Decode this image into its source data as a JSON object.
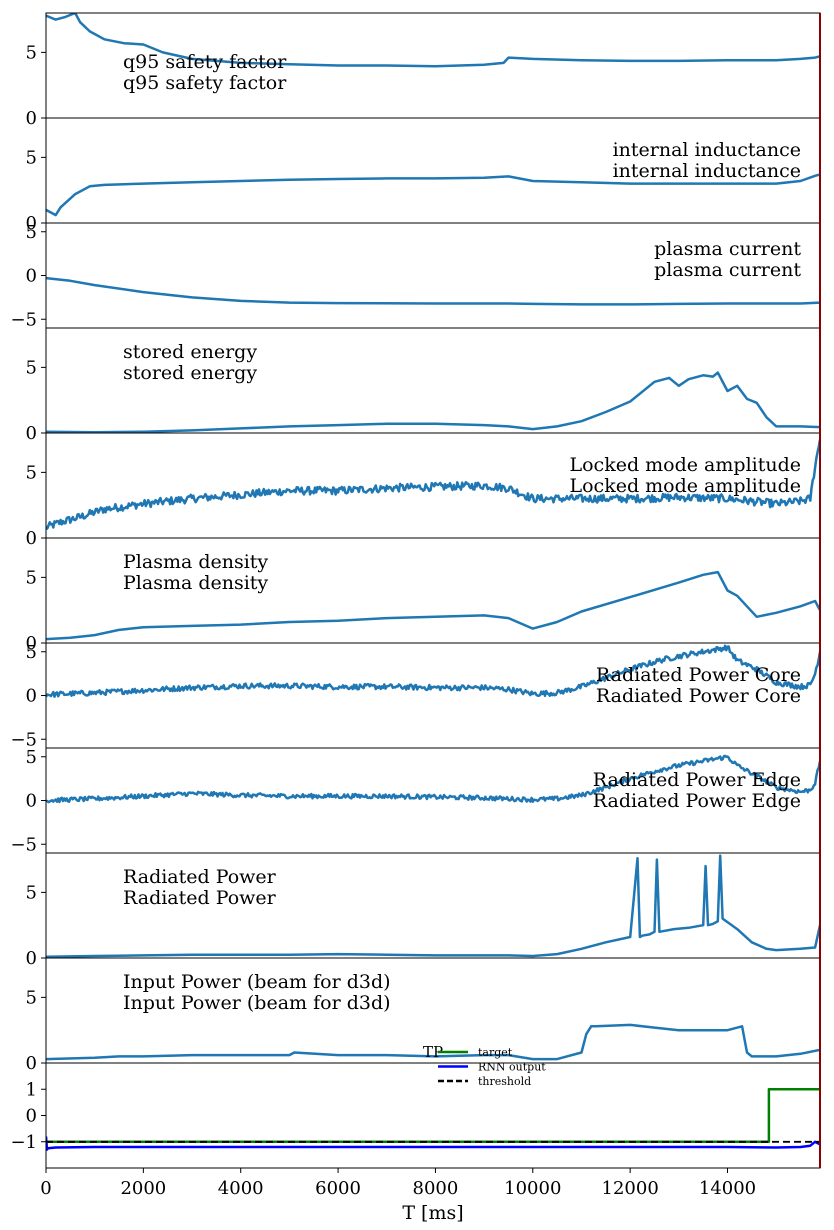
{
  "chart_data": [
    {
      "type": "line",
      "labels": [
        "q95 safety factor",
        "q95 safety factor"
      ],
      "label_anchor": "start",
      "color": "#1f77b4",
      "ylim": [
        0,
        8
      ],
      "yticks": [
        0,
        5
      ],
      "ytick_labels": [
        "0",
        "5"
      ],
      "series": [
        {
          "x": [
            0,
            200,
            400,
            600,
            700,
            900,
            1200,
            1600,
            2000,
            2400,
            3000,
            4000,
            5000,
            6000,
            7000,
            8000,
            9000,
            9400,
            9500,
            10000,
            11000,
            12000,
            13000,
            14000,
            15000,
            15500,
            15800,
            15900
          ],
          "y": [
            7.8,
            7.5,
            7.7,
            8.0,
            7.3,
            6.6,
            6.0,
            5.7,
            5.6,
            5.0,
            4.5,
            4.2,
            4.1,
            4.0,
            4.0,
            3.95,
            4.05,
            4.2,
            4.6,
            4.5,
            4.4,
            4.35,
            4.35,
            4.4,
            4.4,
            4.5,
            4.6,
            4.7
          ]
        }
      ]
    },
    {
      "type": "line",
      "labels": [
        "internal inductance",
        "internal inductance"
      ],
      "label_anchor": "end",
      "color": "#1f77b4",
      "ylim": [
        0,
        8
      ],
      "yticks": [
        0,
        5
      ],
      "ytick_labels": [
        "0",
        "5"
      ],
      "series": [
        {
          "x": [
            0,
            100,
            200,
            300,
            600,
            900,
            1200,
            2000,
            3000,
            4000,
            5000,
            6000,
            7000,
            8000,
            9000,
            9500,
            10000,
            11000,
            12000,
            13000,
            14000,
            15000,
            15500,
            15800,
            15900
          ],
          "y": [
            1.0,
            0.8,
            0.6,
            1.2,
            2.2,
            2.8,
            2.9,
            3.0,
            3.1,
            3.2,
            3.3,
            3.35,
            3.4,
            3.4,
            3.45,
            3.55,
            3.2,
            3.1,
            3.0,
            3.0,
            3.0,
            3.0,
            3.2,
            3.6,
            3.7
          ]
        }
      ]
    },
    {
      "type": "line",
      "labels": [
        "plasma current",
        "plasma current"
      ],
      "label_anchor": "end",
      "color": "#1f77b4",
      "ylim": [
        -6,
        6
      ],
      "yticks": [
        -5,
        0,
        5
      ],
      "ytick_labels": [
        "−5",
        "0",
        "5"
      ],
      "series": [
        {
          "x": [
            0,
            500,
            1000,
            2000,
            3000,
            4000,
            5000,
            6000,
            8000,
            9500,
            10000,
            11000,
            12000,
            13000,
            14000,
            15000,
            15500,
            15900
          ],
          "y": [
            -0.3,
            -0.6,
            -1.1,
            -1.9,
            -2.5,
            -2.9,
            -3.1,
            -3.15,
            -3.2,
            -3.2,
            -3.25,
            -3.3,
            -3.3,
            -3.25,
            -3.2,
            -3.2,
            -3.2,
            -3.1
          ]
        }
      ]
    },
    {
      "type": "line",
      "labels": [
        "stored energy",
        "stored energy"
      ],
      "label_anchor": "start",
      "color": "#1f77b4",
      "ylim": [
        0,
        8
      ],
      "yticks": [
        0,
        5
      ],
      "ytick_labels": [
        "0",
        "5"
      ],
      "series": [
        {
          "x": [
            0,
            1000,
            2000,
            3000,
            4000,
            5000,
            6000,
            7000,
            8000,
            9000,
            9500,
            10000,
            10500,
            11000,
            11500,
            12000,
            12300,
            12500,
            12800,
            13000,
            13200,
            13500,
            13700,
            13800,
            14000,
            14200,
            14400,
            14600,
            14800,
            15000,
            15500,
            15900
          ],
          "y": [
            0.1,
            0.05,
            0.1,
            0.2,
            0.35,
            0.5,
            0.6,
            0.7,
            0.7,
            0.6,
            0.5,
            0.3,
            0.5,
            0.9,
            1.6,
            2.4,
            3.3,
            3.9,
            4.2,
            3.6,
            4.1,
            4.4,
            4.3,
            4.6,
            3.2,
            3.6,
            2.6,
            2.3,
            1.2,
            0.5,
            0.5,
            0.45
          ]
        }
      ]
    },
    {
      "type": "line",
      "labels": [
        "Locked mode amplitude",
        "Locked mode amplitude"
      ],
      "label_anchor": "end",
      "color": "#1f77b4",
      "ylim": [
        0,
        8
      ],
      "yticks": [
        0,
        5
      ],
      "ytick_labels": [
        "0",
        "5"
      ],
      "noise": 0.3,
      "series": [
        {
          "x": [
            0,
            300,
            700,
            1200,
            2000,
            3000,
            4000,
            5000,
            6000,
            7000,
            8000,
            9000,
            9500,
            10000,
            11000,
            12000,
            13000,
            14000,
            14500,
            15000,
            15500,
            15700,
            15800,
            15900
          ],
          "y": [
            0.8,
            1.2,
            1.6,
            2.2,
            2.6,
            3.0,
            3.3,
            3.6,
            3.6,
            3.8,
            3.9,
            4.0,
            3.8,
            3.0,
            3.0,
            3.0,
            3.1,
            3.0,
            2.8,
            2.6,
            2.8,
            3.0,
            5.5,
            7.5
          ]
        }
      ]
    },
    {
      "type": "line",
      "labels": [
        "Plasma density",
        "Plasma density"
      ],
      "label_anchor": "start",
      "color": "#1f77b4",
      "ylim": [
        0,
        8
      ],
      "yticks": [
        0,
        5
      ],
      "ytick_labels": [
        "0",
        "5"
      ],
      "series": [
        {
          "x": [
            0,
            500,
            1000,
            1500,
            2000,
            3000,
            4000,
            5000,
            6000,
            7000,
            8000,
            9000,
            9500,
            10000,
            10500,
            11000,
            12000,
            13000,
            13500,
            13800,
            14000,
            14200,
            14600,
            15000,
            15500,
            15800,
            15900
          ],
          "y": [
            0.3,
            0.4,
            0.6,
            1.0,
            1.2,
            1.3,
            1.4,
            1.6,
            1.7,
            1.9,
            2.0,
            2.1,
            1.9,
            1.1,
            1.6,
            2.4,
            3.5,
            4.6,
            5.2,
            5.4,
            4.0,
            3.6,
            2.0,
            2.3,
            2.8,
            3.2,
            2.5
          ]
        }
      ]
    },
    {
      "type": "line",
      "labels": [
        "Radiated Power Core",
        "Radiated Power Core"
      ],
      "label_anchor": "end",
      "color": "#1f77b4",
      "ylim": [
        -6,
        6
      ],
      "yticks": [
        -5,
        0,
        5
      ],
      "ytick_labels": [
        "−5",
        "0",
        "5"
      ],
      "noise": 0.3,
      "series": [
        {
          "x": [
            0,
            1000,
            2000,
            3000,
            4000,
            5000,
            6000,
            7000,
            8000,
            9000,
            9500,
            10000,
            10500,
            11000,
            11500,
            12000,
            12300,
            12600,
            13000,
            13500,
            14000,
            14200,
            14600,
            15000,
            15500,
            15700,
            15800,
            15900
          ],
          "y": [
            0.1,
            0.3,
            0.6,
            0.9,
            1.1,
            1.1,
            1.0,
            1.0,
            0.9,
            0.9,
            0.7,
            0.2,
            0.3,
            1.0,
            2.0,
            3.0,
            3.5,
            4.0,
            4.5,
            5.0,
            5.5,
            4.0,
            3.0,
            1.5,
            1.0,
            1.2,
            2.5,
            5.0
          ]
        }
      ]
    },
    {
      "type": "line",
      "labels": [
        "Radiated Power Edge",
        "Radiated Power Edge"
      ],
      "label_anchor": "end",
      "color": "#1f77b4",
      "ylim": [
        -6,
        6
      ],
      "yticks": [
        -5,
        0,
        5
      ],
      "ytick_labels": [
        "−5",
        "0",
        "5"
      ],
      "noise": 0.25,
      "series": [
        {
          "x": [
            0,
            1000,
            2000,
            3000,
            4000,
            5000,
            6000,
            7000,
            8000,
            9000,
            9500,
            10000,
            10500,
            11000,
            11500,
            12000,
            12300,
            12600,
            13000,
            13500,
            14000,
            14200,
            14600,
            15000,
            15500,
            15700,
            15800,
            15900
          ],
          "y": [
            0.0,
            0.2,
            0.5,
            0.8,
            0.6,
            0.5,
            0.5,
            0.5,
            0.4,
            0.3,
            0.2,
            0.1,
            0.2,
            0.6,
            1.5,
            2.5,
            3.0,
            3.5,
            4.0,
            4.5,
            5.0,
            4.0,
            2.8,
            1.5,
            1.0,
            1.2,
            2.0,
            4.5
          ]
        }
      ]
    },
    {
      "type": "line",
      "labels": [
        "Radiated Power",
        "Radiated Power"
      ],
      "label_anchor": "start",
      "color": "#1f77b4",
      "ylim": [
        0,
        8
      ],
      "yticks": [
        0,
        5
      ],
      "ytick_labels": [
        "0",
        "5"
      ],
      "series": [
        {
          "x": [
            0,
            1000,
            2000,
            3000,
            4000,
            5000,
            6000,
            7000,
            8000,
            9000,
            9500,
            10000,
            10500,
            11000,
            11500,
            12000,
            12150,
            12200,
            12250,
            12400,
            12500,
            12550,
            12600,
            12900,
            13200,
            13500,
            13550,
            13600,
            13700,
            13800,
            13850,
            13900,
            14200,
            14500,
            14800,
            15000,
            15500,
            15800,
            15900
          ],
          "y": [
            0.1,
            0.15,
            0.2,
            0.25,
            0.25,
            0.25,
            0.3,
            0.25,
            0.2,
            0.2,
            0.2,
            0.15,
            0.3,
            0.7,
            1.2,
            1.6,
            7.6,
            1.6,
            1.7,
            1.8,
            2.0,
            7.5,
            2.0,
            2.2,
            2.3,
            2.5,
            7.0,
            2.5,
            2.6,
            2.8,
            7.8,
            3.0,
            2.2,
            1.2,
            0.7,
            0.6,
            0.7,
            0.8,
            2.5
          ]
        }
      ]
    },
    {
      "type": "line",
      "labels": [
        "Input Power (beam for d3d)",
        "Input Power (beam for d3d)"
      ],
      "label_anchor": "start",
      "color": "#1f77b4",
      "ylim": [
        0,
        8
      ],
      "yticks": [
        0,
        5
      ],
      "ytick_labels": [
        "0",
        "5"
      ],
      "series": [
        {
          "x": [
            0,
            1000,
            1500,
            2000,
            3000,
            4000,
            5000,
            5100,
            6000,
            7000,
            8000,
            9000,
            9500,
            10000,
            10500,
            11000,
            11100,
            11200,
            11300,
            12000,
            12500,
            13000,
            14000,
            14300,
            14400,
            14500,
            15000,
            15500,
            15900
          ],
          "y": [
            0.3,
            0.4,
            0.5,
            0.5,
            0.6,
            0.6,
            0.6,
            0.8,
            0.6,
            0.6,
            0.5,
            0.6,
            0.6,
            0.3,
            0.3,
            0.8,
            2.2,
            2.8,
            2.8,
            2.9,
            2.7,
            2.5,
            2.5,
            2.8,
            0.8,
            0.5,
            0.5,
            0.7,
            1.0
          ]
        }
      ]
    },
    {
      "type": "line",
      "ylim": [
        -2,
        2
      ],
      "yticks": [
        -1,
        0,
        1
      ],
      "ytick_labels": [
        "−1",
        "0",
        "1"
      ],
      "legend": {
        "title": "TP",
        "placement": "top-center",
        "entries": [
          {
            "name": "target",
            "color": "#008000",
            "dash": "solid"
          },
          {
            "name": "RNN output",
            "color": "#0000ff",
            "dash": "solid"
          },
          {
            "name": "threshold",
            "color": "#000000",
            "dash": "dashed"
          }
        ]
      },
      "series": [
        {
          "name": "target",
          "color": "#008000",
          "dash": "solid",
          "x": [
            0,
            14850,
            14851,
            15900
          ],
          "y": [
            -1,
            -1,
            1,
            1
          ]
        },
        {
          "name": "RNN output",
          "color": "#0000ff",
          "dash": "solid",
          "x": [
            0,
            20,
            40,
            200,
            1000,
            3000,
            6000,
            9000,
            12000,
            14000,
            15000,
            15500,
            15700,
            15800,
            15900
          ],
          "y": [
            -0.8,
            -1.3,
            -1.25,
            -1.22,
            -1.2,
            -1.2,
            -1.2,
            -1.2,
            -1.2,
            -1.2,
            -1.22,
            -1.2,
            -1.15,
            -1.0,
            -1.1
          ]
        },
        {
          "name": "threshold",
          "color": "#000000",
          "dash": "dashed",
          "x": [
            0,
            15900
          ],
          "y": [
            -1.0,
            -1.0
          ]
        }
      ]
    }
  ],
  "x_axis": {
    "xlim": [
      0,
      15900
    ],
    "ticks": [
      0,
      2000,
      4000,
      6000,
      8000,
      10000,
      12000,
      14000
    ],
    "tick_labels": [
      "0",
      "2000",
      "4000",
      "6000",
      "8000",
      "10000",
      "12000",
      "14000"
    ],
    "xlabel": "T [ms]"
  },
  "disruption_marker": {
    "x": 15900,
    "color": "#8b0000"
  }
}
